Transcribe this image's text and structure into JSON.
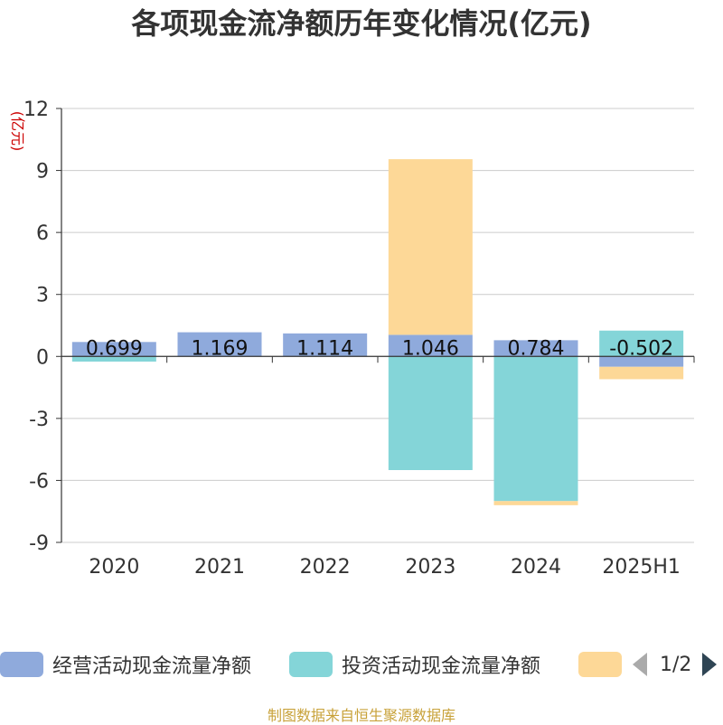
{
  "chart_data": {
    "type": "bar",
    "stacked": true,
    "title": "各项现金流净额历年变化情况(亿元)",
    "ylabel": "(亿元)",
    "categories": [
      "2020",
      "2021",
      "2022",
      "2023",
      "2024",
      "2025H1"
    ],
    "ylim": [
      -9,
      12
    ],
    "yticks": [
      12,
      9,
      6,
      3,
      0,
      -3,
      -6,
      -9
    ],
    "grid": true,
    "series": [
      {
        "name": "经营活动现金流量净额",
        "color": "#8faadc",
        "values": [
          0.699,
          1.169,
          1.114,
          1.046,
          0.784,
          -0.502
        ],
        "labels": [
          "0.699",
          "1.169",
          "1.114",
          "1.046",
          "0.784",
          "-0.502"
        ]
      },
      {
        "name": "投资活动现金流量净额",
        "color": "#84d5d8",
        "values": [
          -0.25,
          0.0,
          0.0,
          -5.5,
          -7.0,
          1.25
        ]
      },
      {
        "name": "",
        "color": "#fdd897",
        "values": [
          0.0,
          0.0,
          0.0,
          8.5,
          -0.2,
          -0.6
        ]
      }
    ]
  },
  "legend": {
    "page": "1/2",
    "placement": "bottom"
  },
  "source": {
    "text": "制图数据来自恒生聚源数据库",
    "color": "#c8a23a"
  },
  "colors": {
    "title": "#333333",
    "axis": "#333333",
    "ylabel": "#cc0000",
    "grid": "#cccccc"
  }
}
